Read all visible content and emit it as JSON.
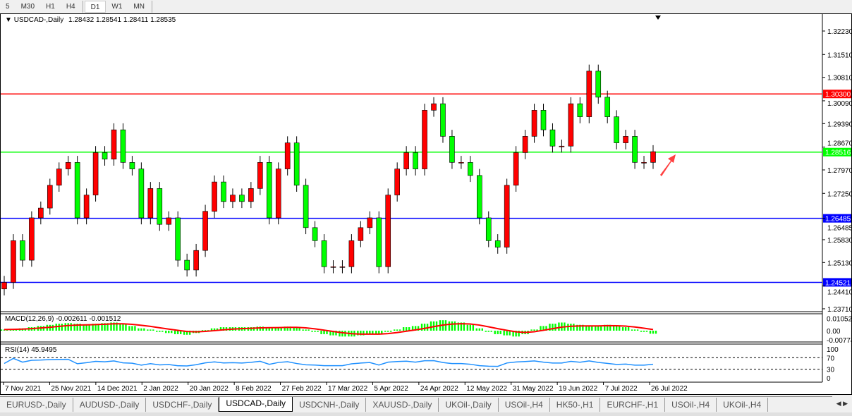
{
  "timeframes": [
    "5",
    "M30",
    "H1",
    "H4",
    "D1",
    "W1",
    "MN"
  ],
  "active_timeframe": "D1",
  "chart": {
    "title": "USDCAD-,Daily",
    "ohlc": "1.28432 1.28541 1.28411 1.28535",
    "price_ticks": [
      "1.32230",
      "1.31510",
      "1.30810",
      "1.30090",
      "1.29390",
      "1.28670",
      "1.27970",
      "1.27250",
      "1.26485",
      "1.25830",
      "1.25130",
      "1.24410",
      "1.23710"
    ],
    "levels": [
      {
        "price": 1.303,
        "label": "1.30300",
        "color": "#ff0000"
      },
      {
        "price": 1.28516,
        "label": "1.28516",
        "color": "#00ff00"
      },
      {
        "price": 1.26485,
        "label": "1.26485",
        "color": "#0000ff"
      },
      {
        "price": 1.24521,
        "label": "1.24521",
        "color": "#0000ff"
      }
    ],
    "bull_color": "#ff0000",
    "bear_color": "#00ff00",
    "closes": [
      1.2452,
      1.258,
      1.252,
      1.265,
      1.268,
      1.275,
      1.28,
      1.282,
      1.265,
      1.272,
      1.285,
      1.283,
      1.292,
      1.282,
      1.28,
      1.265,
      1.274,
      1.263,
      1.265,
      1.252,
      1.249,
      1.255,
      1.267,
      1.276,
      1.27,
      1.272,
      1.27,
      1.274,
      1.282,
      1.265,
      1.28,
      1.288,
      1.275,
      1.262,
      1.258,
      1.25,
      1.25,
      1.25,
      1.258,
      1.262,
      1.265,
      1.25,
      1.272,
      1.28,
      1.285,
      1.28,
      1.298,
      1.3,
      1.29,
      1.282,
      1.282,
      1.278,
      1.265,
      1.258,
      1.256,
      1.275,
      1.285,
      1.29,
      1.298,
      1.292,
      1.287,
      1.287,
      1.3,
      1.296,
      1.31,
      1.302,
      1.296,
      1.288,
      1.29,
      1.282,
      1.282,
      1.2853
    ],
    "arrow": "up-right-arrow",
    "dates": [
      "7 Nov 2021",
      "25 Nov 2021",
      "14 Dec 2021",
      "2 Jan 2022",
      "20 Jan 2022",
      "8 Feb 2022",
      "27 Feb 2022",
      "17 Mar 2022",
      "5 Apr 2022",
      "24 Apr 2022",
      "12 May 2022",
      "31 May 2022",
      "19 Jun 2022",
      "7 Jul 2022",
      "26 Jul 2022"
    ]
  },
  "macd": {
    "label": "MACD(12,26,9) -0.002611 -0.001512",
    "ticks": [
      "0.01052",
      "0.00",
      "-0.00774"
    ],
    "hist_color": "#00ff00",
    "signal_color": "#ff0000",
    "hist": [
      0.001,
      0.0015,
      0.002,
      0.003,
      0.004,
      0.005,
      0.006,
      0.0065,
      0.006,
      0.0055,
      0.006,
      0.0065,
      0.007,
      0.006,
      0.004,
      0.002,
      0.001,
      -0.001,
      -0.002,
      -0.003,
      -0.0035,
      -0.002,
      0.0005,
      0.002,
      0.003,
      0.003,
      0.003,
      0.003,
      0.0035,
      0.003,
      0.003,
      0.0035,
      0.003,
      0.001,
      -0.001,
      -0.003,
      -0.004,
      -0.005,
      -0.005,
      -0.004,
      -0.003,
      -0.003,
      -0.001,
      0.001,
      0.003,
      0.004,
      0.006,
      0.008,
      0.009,
      0.008,
      0.007,
      0.005,
      0.002,
      -0.001,
      -0.003,
      -0.004,
      -0.005,
      -0.003,
      0.001,
      0.004,
      0.006,
      0.007,
      0.006,
      0.005,
      0.004,
      0.004,
      0.005,
      0.004,
      0.003,
      0.001,
      -0.001,
      -0.0026
    ]
  },
  "rsi": {
    "label": "RSI(14) 45.9495",
    "ticks": [
      "100",
      "70",
      "30",
      "0"
    ],
    "color": "#1e90ff"
  },
  "tabs": [
    "EURUSD-,Daily",
    "AUDUSD-,Daily",
    "USDCHF-,Daily",
    "USDCAD-,Daily",
    "USDCNH-,Daily",
    "XAUUSD-,Daily",
    "UKOil-,Daily",
    "USOil-,H4",
    "HK50-,H1",
    "EURCHF-,H1",
    "USOil-,H4",
    "UKOil-,H4"
  ],
  "active_tab": "USDCAD-,Daily"
}
